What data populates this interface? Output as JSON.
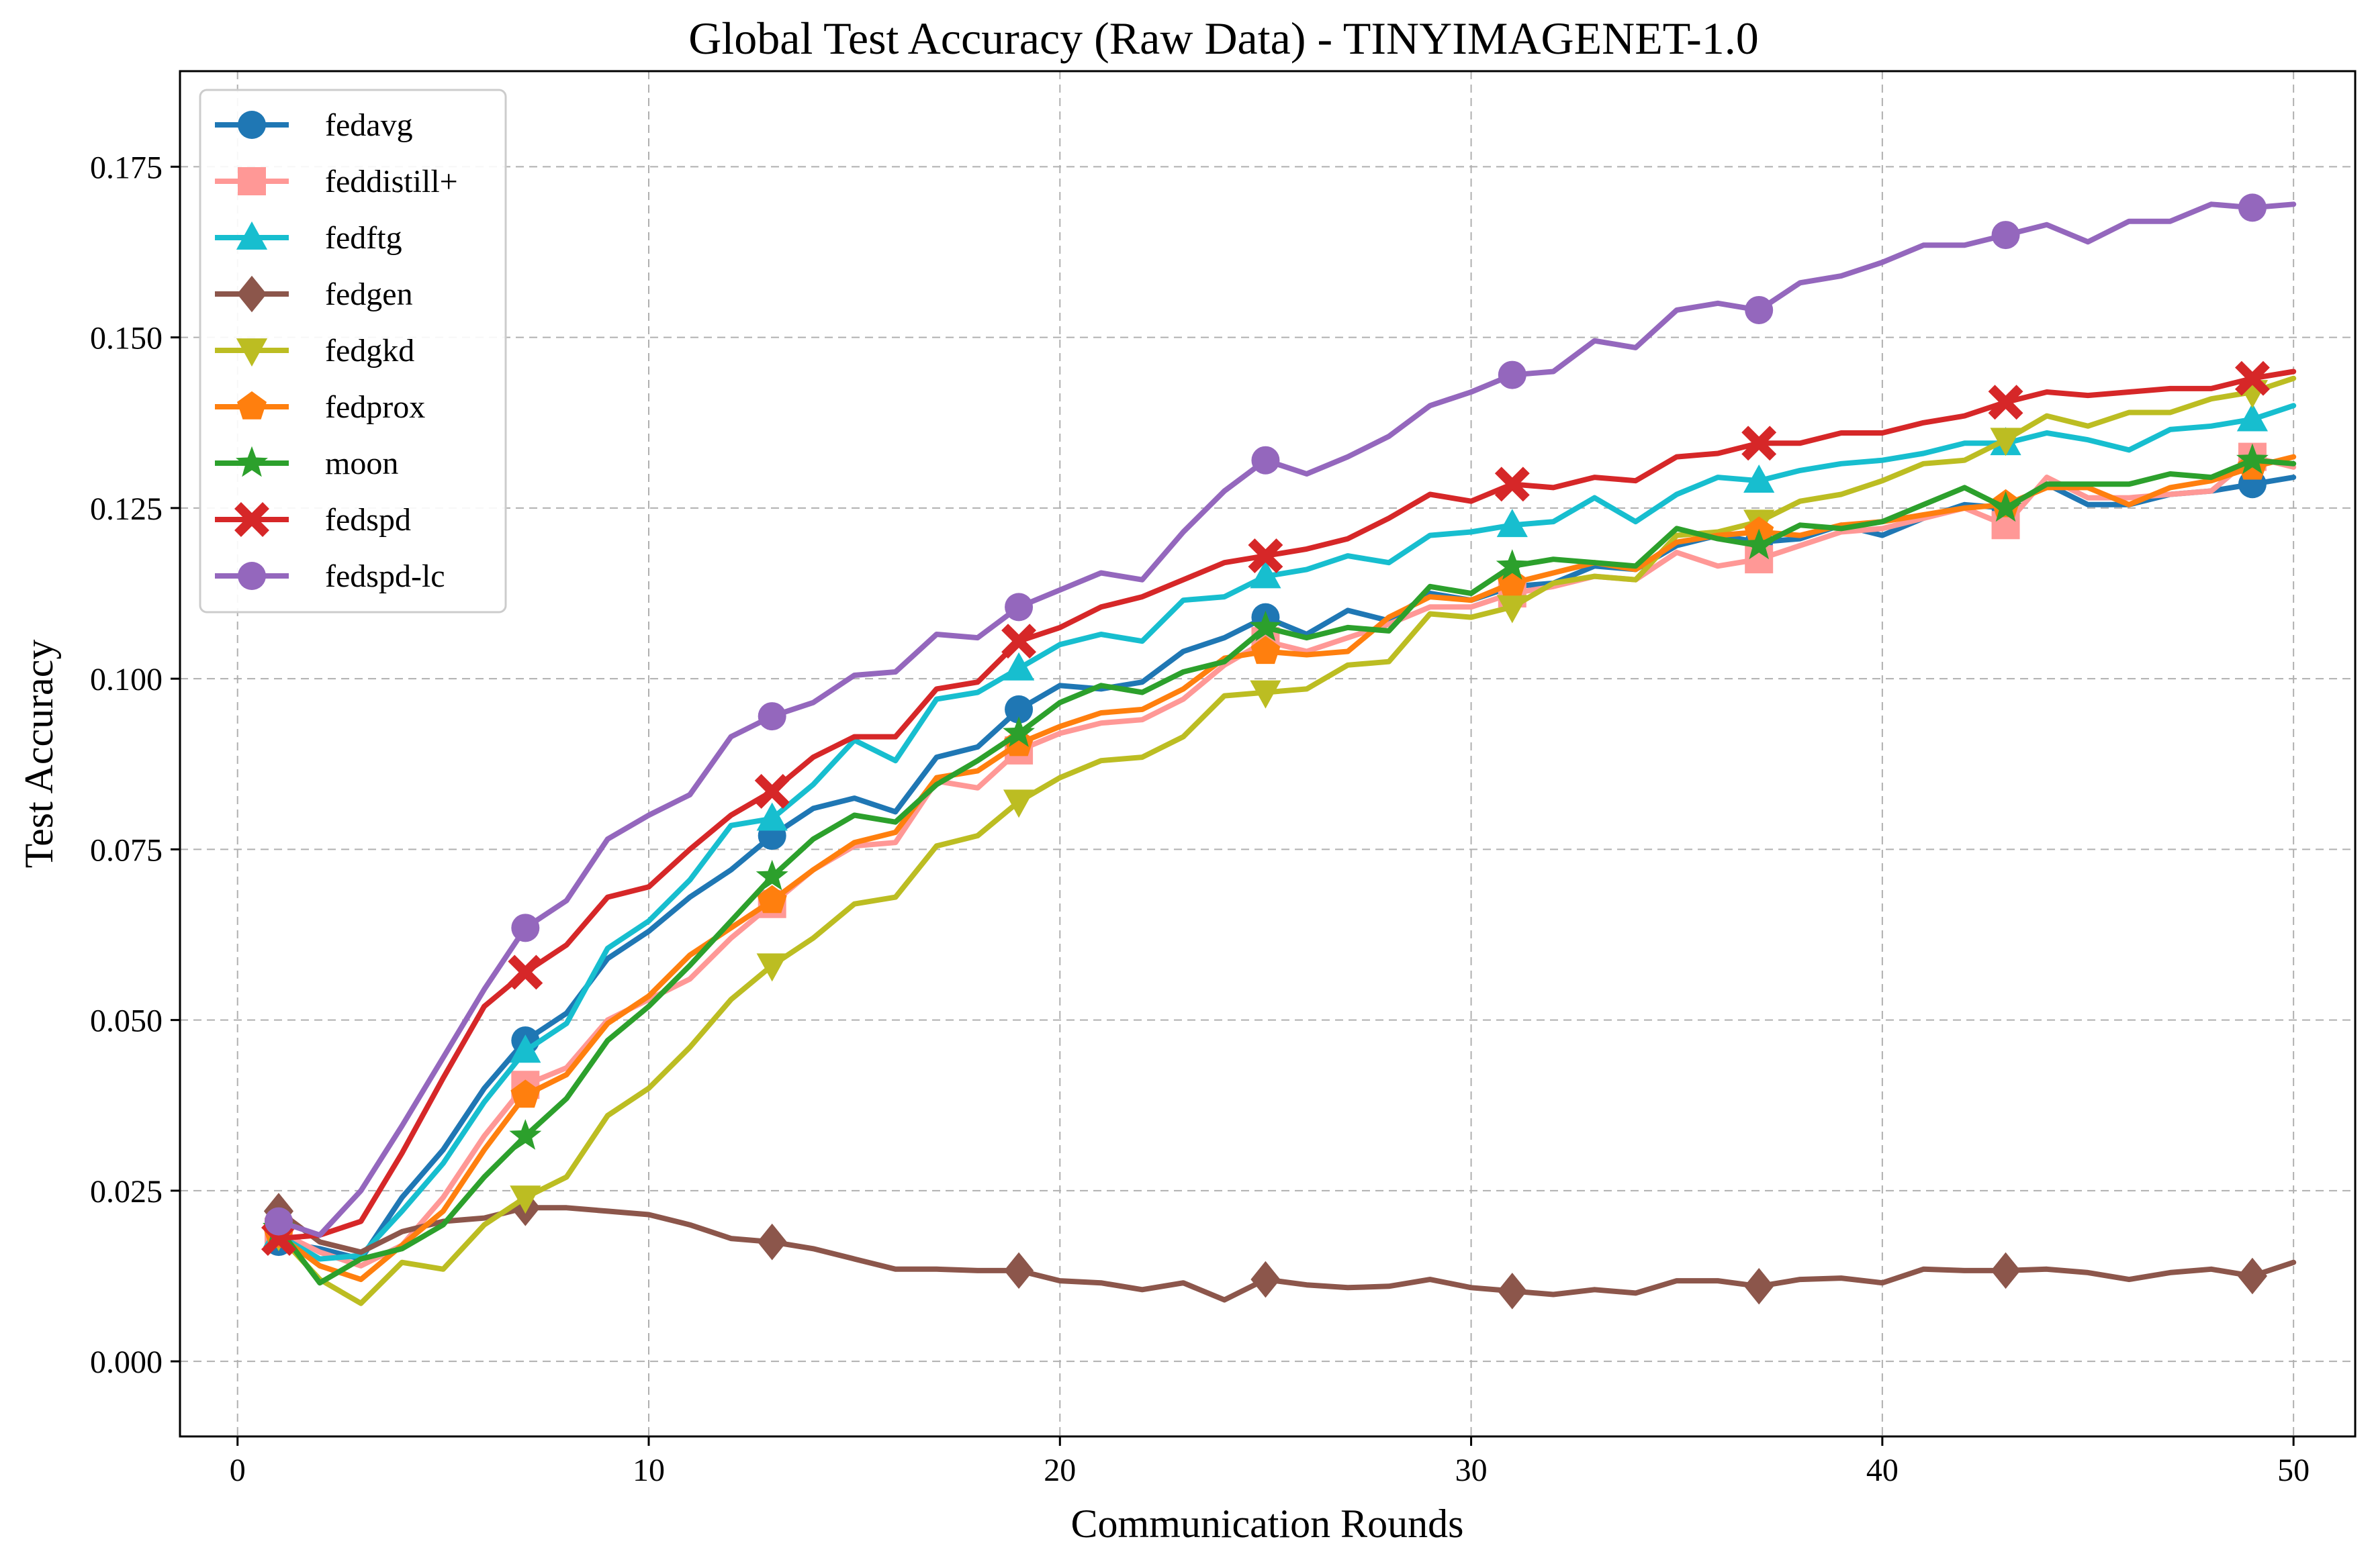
{
  "chart_data": {
    "type": "line",
    "title": "Global Test Accuracy (Raw Data) - TINYIMAGENET-1.0",
    "xlabel": "Communication Rounds",
    "ylabel": "Test Accuracy",
    "xlim": [
      -1.4,
      51.5
    ],
    "ylim": [
      -0.011,
      0.189
    ],
    "x_ticks": [
      0,
      10,
      20,
      30,
      40,
      50
    ],
    "x_tick_labels": [
      "0",
      "10",
      "20",
      "30",
      "40",
      "50"
    ],
    "y_ticks": [
      0.0,
      0.025,
      0.05,
      0.075,
      0.1,
      0.125,
      0.15,
      0.175
    ],
    "y_tick_labels": [
      "0.000",
      "0.025",
      "0.050",
      "0.075",
      "0.100",
      "0.125",
      "0.150",
      "0.175"
    ],
    "grid": true,
    "legend_position": "top-left",
    "marker_rounds": [
      1,
      7,
      13,
      19,
      25,
      31,
      37,
      43,
      49
    ],
    "x": [
      1,
      2,
      3,
      4,
      5,
      6,
      7,
      8,
      9,
      10,
      11,
      12,
      13,
      14,
      15,
      16,
      17,
      18,
      19,
      20,
      21,
      22,
      23,
      24,
      25,
      26,
      27,
      28,
      29,
      30,
      31,
      32,
      33,
      34,
      35,
      36,
      37,
      38,
      39,
      40,
      41,
      42,
      43,
      44,
      45,
      46,
      47,
      48,
      49,
      50
    ],
    "series": [
      {
        "name": "fedavg",
        "color": "#1f77b4",
        "marker": "circle",
        "values": [
          0.0175,
          0.0165,
          0.015,
          0.024,
          0.031,
          0.04,
          0.047,
          0.051,
          0.059,
          0.063,
          0.068,
          0.072,
          0.077,
          0.081,
          0.0825,
          0.0805,
          0.0885,
          0.09,
          0.0955,
          0.099,
          0.0985,
          0.0995,
          0.104,
          0.106,
          0.109,
          0.1065,
          0.11,
          0.1085,
          0.1125,
          0.1115,
          0.1135,
          0.114,
          0.1165,
          0.116,
          0.1195,
          0.121,
          0.12,
          0.1205,
          0.1225,
          0.121,
          0.1235,
          0.1255,
          0.125,
          0.1285,
          0.1255,
          0.1255,
          0.127,
          0.1275,
          0.1285,
          0.1295
        ]
      },
      {
        "name": "feddistill+",
        "color": "#ff9896",
        "marker": "square",
        "values": [
          0.019,
          0.016,
          0.014,
          0.017,
          0.024,
          0.033,
          0.0405,
          0.043,
          0.05,
          0.053,
          0.056,
          0.062,
          0.067,
          0.072,
          0.0755,
          0.076,
          0.085,
          0.084,
          0.0895,
          0.092,
          0.0935,
          0.094,
          0.097,
          0.102,
          0.1055,
          0.104,
          0.106,
          0.108,
          0.1105,
          0.1105,
          0.1125,
          0.1135,
          0.115,
          0.1145,
          0.1185,
          0.1165,
          0.1175,
          0.1195,
          0.1215,
          0.122,
          0.1235,
          0.125,
          0.1225,
          0.1295,
          0.1265,
          0.1265,
          0.127,
          0.1275,
          0.1325,
          0.131
        ]
      },
      {
        "name": "fedftg",
        "color": "#17becf",
        "marker": "triangle-up",
        "values": [
          0.0185,
          0.015,
          0.0155,
          0.022,
          0.029,
          0.038,
          0.0455,
          0.0495,
          0.0605,
          0.0645,
          0.0705,
          0.0785,
          0.0795,
          0.0845,
          0.091,
          0.088,
          0.097,
          0.098,
          0.1015,
          0.105,
          0.1065,
          0.1055,
          0.1115,
          0.112,
          0.115,
          0.116,
          0.118,
          0.117,
          0.121,
          0.1215,
          0.1225,
          0.123,
          0.1265,
          0.123,
          0.127,
          0.1295,
          0.129,
          0.1305,
          0.1315,
          0.132,
          0.133,
          0.1345,
          0.1345,
          0.136,
          0.135,
          0.1335,
          0.1365,
          0.137,
          0.138,
          0.14
        ]
      },
      {
        "name": "fedgen",
        "color": "#8c564b",
        "marker": "diamond",
        "values": [
          0.022,
          0.0175,
          0.016,
          0.019,
          0.0205,
          0.021,
          0.0225,
          0.0225,
          0.022,
          0.0215,
          0.02,
          0.018,
          0.0175,
          0.0165,
          0.015,
          0.0135,
          0.0135,
          0.0133,
          0.0133,
          0.0118,
          0.0115,
          0.0105,
          0.0115,
          0.009,
          0.012,
          0.0112,
          0.0108,
          0.011,
          0.012,
          0.0108,
          0.0103,
          0.0098,
          0.0105,
          0.01,
          0.0118,
          0.0118,
          0.011,
          0.012,
          0.0122,
          0.0115,
          0.0135,
          0.0133,
          0.0133,
          0.0135,
          0.013,
          0.012,
          0.013,
          0.0135,
          0.0125,
          0.0145
        ]
      },
      {
        "name": "fedgkd",
        "color": "#bcbd22",
        "marker": "triangle-down",
        "values": [
          0.0185,
          0.012,
          0.0085,
          0.0145,
          0.0135,
          0.02,
          0.024,
          0.027,
          0.036,
          0.04,
          0.046,
          0.053,
          0.058,
          0.062,
          0.067,
          0.068,
          0.0755,
          0.077,
          0.082,
          0.0855,
          0.088,
          0.0885,
          0.0915,
          0.0975,
          0.098,
          0.0985,
          0.102,
          0.1025,
          0.1095,
          0.109,
          0.1105,
          0.114,
          0.115,
          0.1145,
          0.121,
          0.1215,
          0.123,
          0.126,
          0.127,
          0.129,
          0.1315,
          0.132,
          0.135,
          0.1385,
          0.137,
          0.139,
          0.139,
          0.141,
          0.142,
          0.144
        ]
      },
      {
        "name": "fedprox",
        "color": "#ff7f0e",
        "marker": "pentagon",
        "values": [
          0.0185,
          0.014,
          0.012,
          0.017,
          0.022,
          0.031,
          0.039,
          0.042,
          0.0495,
          0.0535,
          0.0595,
          0.0635,
          0.0675,
          0.072,
          0.076,
          0.0775,
          0.0855,
          0.0865,
          0.0905,
          0.093,
          0.095,
          0.0955,
          0.0985,
          0.103,
          0.104,
          0.1035,
          0.104,
          0.109,
          0.112,
          0.1115,
          0.114,
          0.1155,
          0.117,
          0.116,
          0.12,
          0.121,
          0.1215,
          0.121,
          0.1225,
          0.123,
          0.124,
          0.125,
          0.1255,
          0.128,
          0.128,
          0.1255,
          0.128,
          0.129,
          0.131,
          0.1325
        ]
      },
      {
        "name": "moon",
        "color": "#2ca02c",
        "marker": "star",
        "values": [
          0.0195,
          0.0115,
          0.015,
          0.0165,
          0.02,
          0.027,
          0.033,
          0.0385,
          0.047,
          0.052,
          0.058,
          0.0645,
          0.071,
          0.0765,
          0.08,
          0.079,
          0.0845,
          0.088,
          0.092,
          0.0965,
          0.099,
          0.098,
          0.101,
          0.1025,
          0.1075,
          0.106,
          0.1075,
          0.107,
          0.1135,
          0.1125,
          0.1165,
          0.1175,
          0.117,
          0.1165,
          0.122,
          0.1205,
          0.1195,
          0.1225,
          0.122,
          0.123,
          0.1255,
          0.128,
          0.125,
          0.1285,
          0.1285,
          0.1285,
          0.13,
          0.1295,
          0.132,
          0.1315
        ]
      },
      {
        "name": "fedspd",
        "color": "#d62728",
        "marker": "x-filled",
        "values": [
          0.018,
          0.0185,
          0.0205,
          0.0305,
          0.0415,
          0.052,
          0.057,
          0.061,
          0.068,
          0.0695,
          0.075,
          0.08,
          0.0835,
          0.0885,
          0.0915,
          0.0915,
          0.0985,
          0.0995,
          0.1055,
          0.1075,
          0.1105,
          0.112,
          0.1145,
          0.117,
          0.118,
          0.119,
          0.1205,
          0.1235,
          0.127,
          0.126,
          0.1285,
          0.128,
          0.1295,
          0.129,
          0.1325,
          0.133,
          0.1345,
          0.1345,
          0.136,
          0.136,
          0.1375,
          0.1385,
          0.1405,
          0.142,
          0.1415,
          0.142,
          0.1425,
          0.1425,
          0.144,
          0.145
        ]
      },
      {
        "name": "fedspd-lc",
        "color": "#9467bd",
        "marker": "circle",
        "values": [
          0.0205,
          0.0185,
          0.025,
          0.0345,
          0.0445,
          0.0545,
          0.0635,
          0.0675,
          0.0765,
          0.08,
          0.083,
          0.0915,
          0.0945,
          0.0965,
          0.1005,
          0.101,
          0.1065,
          0.106,
          0.1105,
          0.113,
          0.1155,
          0.1145,
          0.1215,
          0.1275,
          0.132,
          0.13,
          0.1325,
          0.1355,
          0.14,
          0.142,
          0.1445,
          0.145,
          0.1495,
          0.1485,
          0.154,
          0.155,
          0.154,
          0.158,
          0.159,
          0.161,
          0.1635,
          0.1635,
          0.165,
          0.1665,
          0.164,
          0.167,
          0.167,
          0.1695,
          0.169,
          0.1695
        ]
      }
    ]
  }
}
